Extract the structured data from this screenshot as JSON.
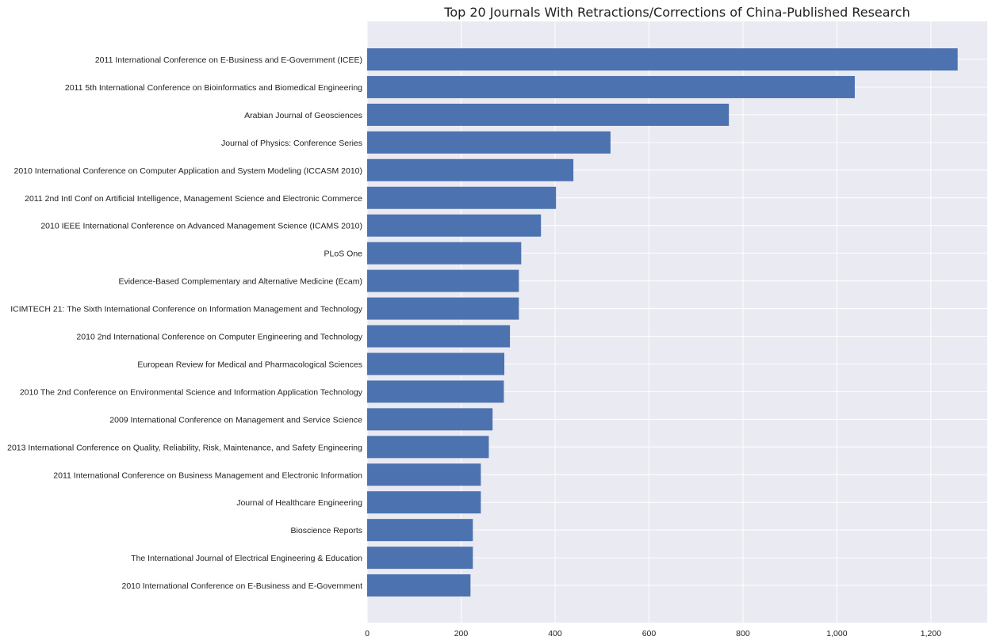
{
  "chart_data": {
    "type": "bar",
    "orientation": "horizontal",
    "title": "Top 20 Journals With Retractions/Corrections of China-Published Research",
    "xlabel": "",
    "ylabel": "",
    "xlim": [
      0,
      1320
    ],
    "xticks": [
      0,
      200,
      400,
      600,
      800,
      1000,
      1200
    ],
    "xtick_labels": [
      "0",
      "200",
      "400",
      "600",
      "800",
      "1,000",
      "1,200"
    ],
    "grid": true,
    "bar_color": "#4c72b0",
    "background_color": "#eaeaf2",
    "grid_color": "#ffffff",
    "categories": [
      "2011 International Conference on E-Business and E-Government (ICEE)",
      "2011 5th International Conference on Bioinformatics and Biomedical Engineering",
      "Arabian Journal of Geosciences",
      "Journal of Physics: Conference Series",
      "2010 International Conference on Computer Application and System Modeling (ICCASM 2010)",
      "2011 2nd Intl Conf on Artificial Intelligence, Management Science and Electronic Commerce",
      "2010 IEEE International Conference on Advanced Management Science (ICAMS 2010)",
      "PLoS One",
      "Evidence-Based Complementary and Alternative Medicine (Ecam)",
      "ICIMTECH 21: The Sixth International Conference on Information Management and Technology",
      "2010 2nd International Conference on Computer Engineering and Technology",
      "European Review for Medical and Pharmacological Sciences",
      "2010 The 2nd Conference on Environmental Science and Information Application Technology",
      "2009 International Conference on Management and Service Science",
      "2013 International Conference on Quality, Reliability, Risk, Maintenance, and Safety Engineering",
      "2011 International Conference on Business Management and Electronic Information",
      "Journal of Healthcare Engineering",
      "Bioscience Reports",
      "The International Journal of Electrical Engineering & Education",
      "2010 International Conference on E-Business and E-Government"
    ],
    "values": [
      1257,
      1038,
      770,
      518,
      439,
      402,
      370,
      328,
      323,
      323,
      304,
      292,
      291,
      267,
      259,
      242,
      242,
      225,
      225,
      220
    ]
  }
}
